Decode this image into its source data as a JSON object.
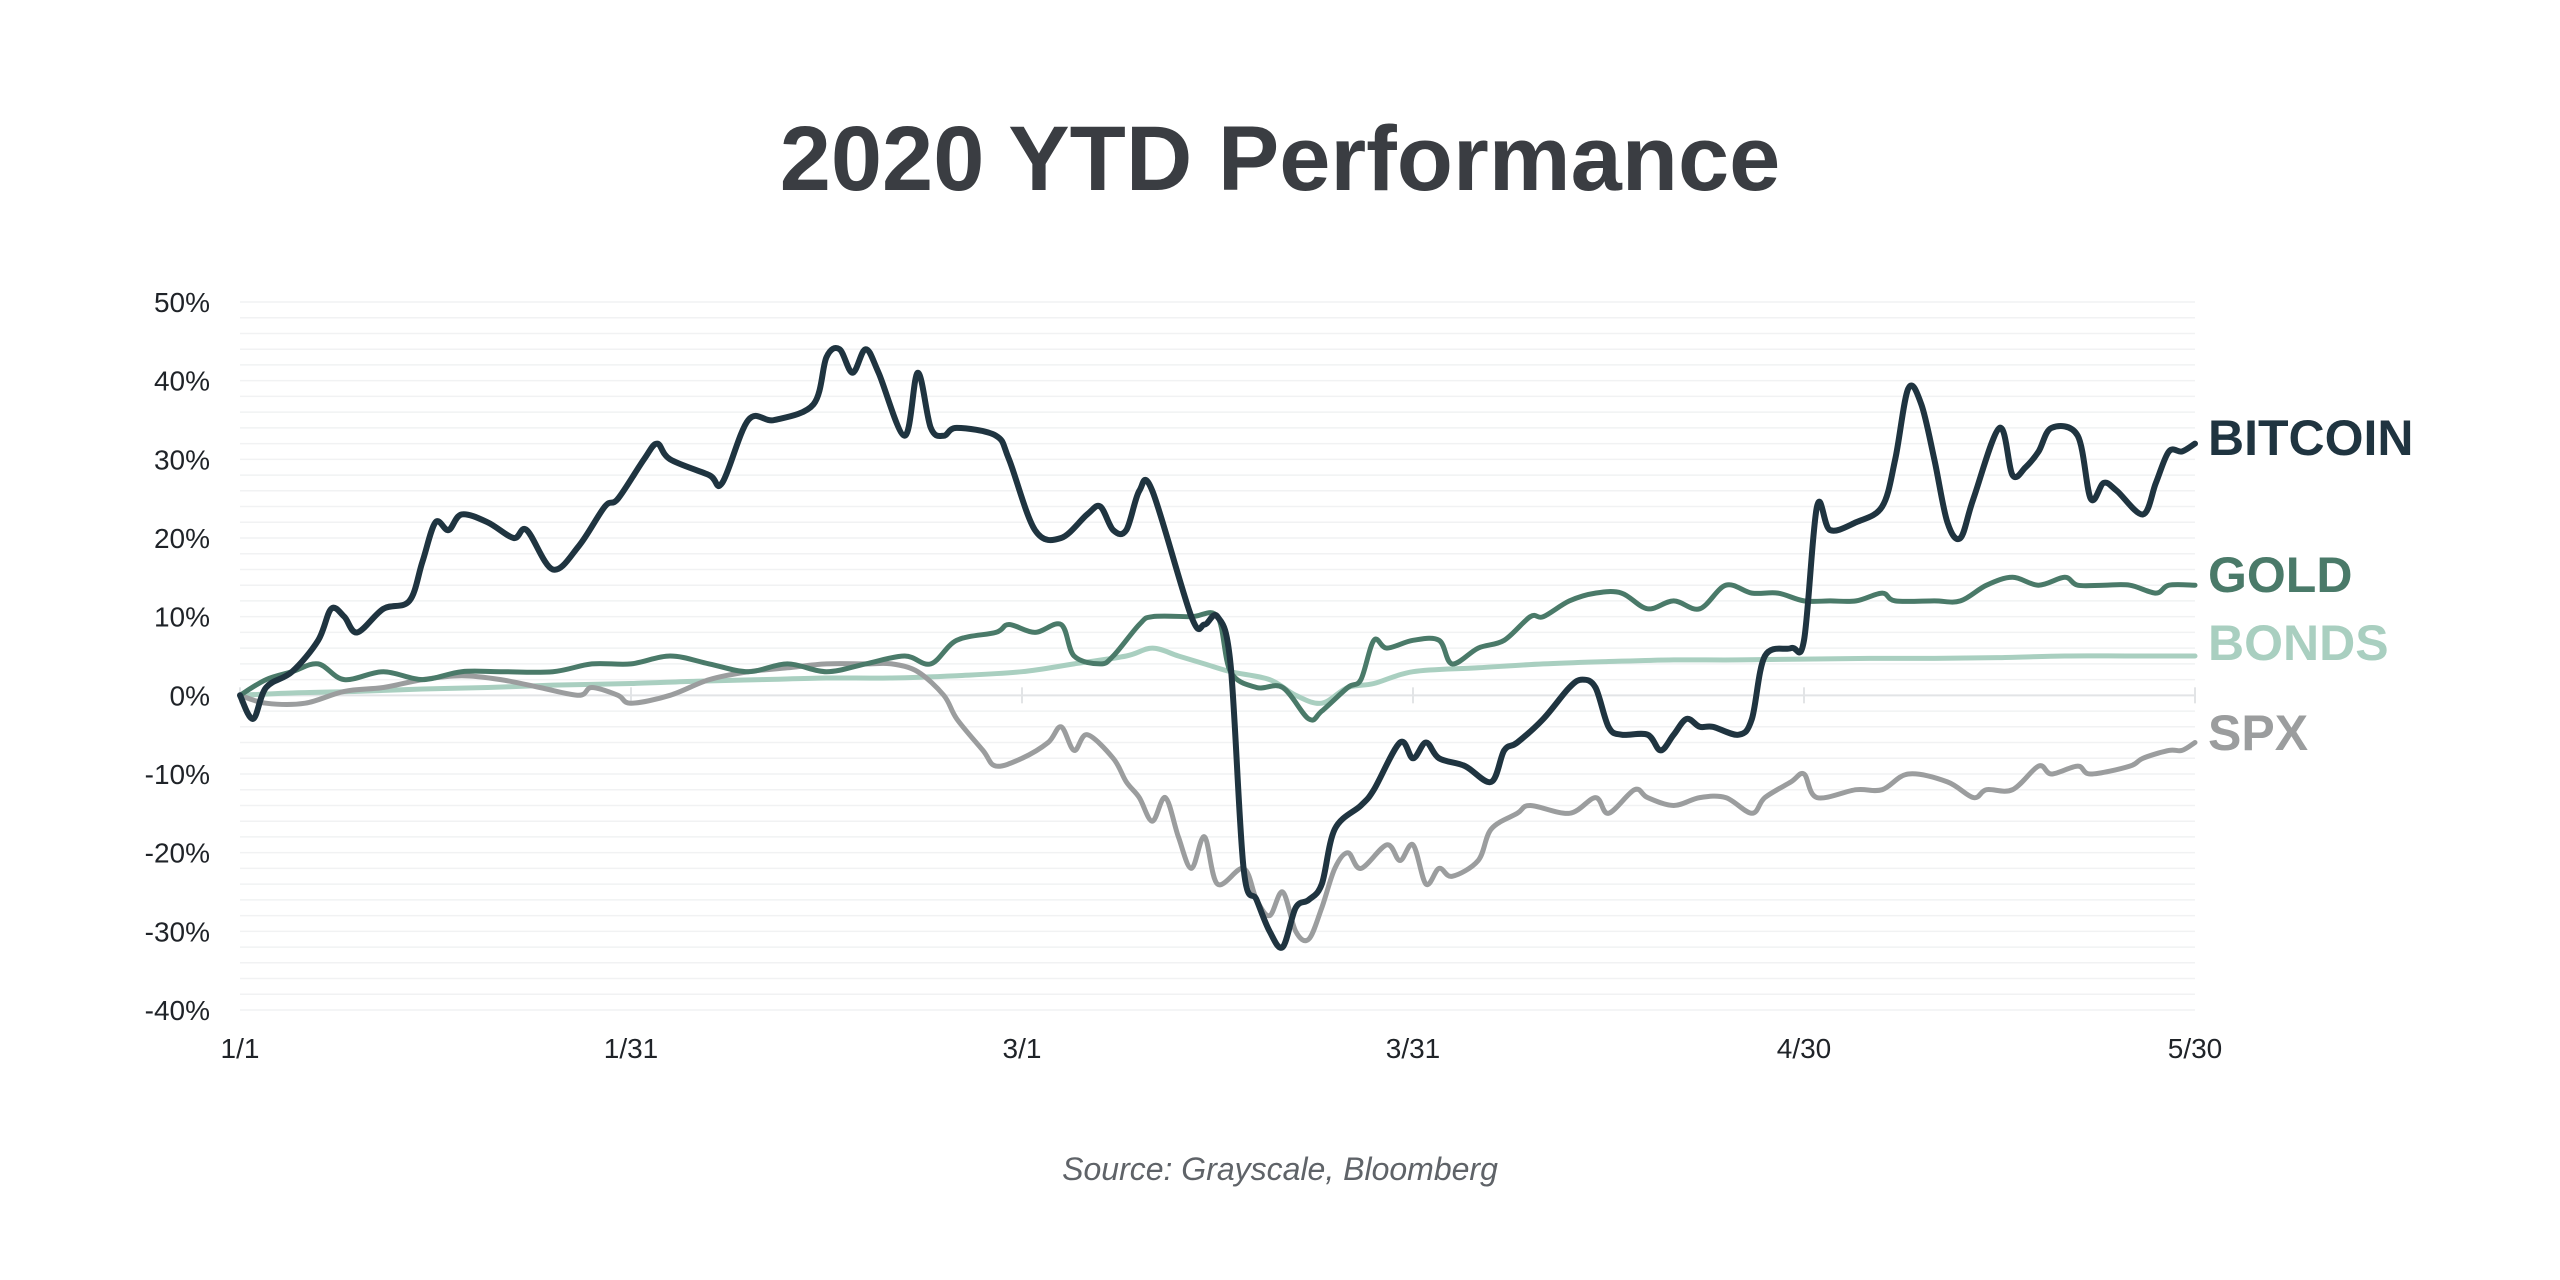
{
  "chart_data": {
    "type": "line",
    "title": "2020 YTD Performance",
    "source": "Source: Grayscale, Bloomberg",
    "xlabel": "",
    "ylabel": "",
    "x_range": [
      "1/1",
      "5/30"
    ],
    "x_ticks": [
      "1/1",
      "1/31",
      "3/1",
      "3/31",
      "4/30",
      "5/30"
    ],
    "y_ticks": [
      50,
      40,
      30,
      20,
      10,
      0,
      -10,
      -20,
      -30,
      -40
    ],
    "y_tick_labels": [
      "50%",
      "40%",
      "30%",
      "20%",
      "10%",
      "0%",
      "-10%",
      "-20%",
      "-30%",
      "-40%"
    ],
    "ylim": [
      -40,
      50
    ],
    "grid": true,
    "legend": "right, labels at line ends",
    "series": [
      {
        "name": "BITCOIN",
        "color": "#1f3440",
        "points": [
          [
            "1/1",
            0
          ],
          [
            "1/2",
            -3
          ],
          [
            "1/3",
            1
          ],
          [
            "1/5",
            3
          ],
          [
            "1/7",
            7
          ],
          [
            "1/8",
            11
          ],
          [
            "1/9",
            10
          ],
          [
            "1/10",
            8
          ],
          [
            "1/12",
            11
          ],
          [
            "1/14",
            12
          ],
          [
            "1/15",
            17
          ],
          [
            "1/16",
            22
          ],
          [
            "1/17",
            21
          ],
          [
            "1/18",
            23
          ],
          [
            "1/20",
            22
          ],
          [
            "1/22",
            20
          ],
          [
            "1/23",
            21
          ],
          [
            "1/25",
            16
          ],
          [
            "1/27",
            19
          ],
          [
            "1/29",
            24
          ],
          [
            "1/30",
            25
          ],
          [
            "2/1",
            30
          ],
          [
            "2/2",
            32
          ],
          [
            "2/3",
            30
          ],
          [
            "2/6",
            28
          ],
          [
            "2/7",
            27
          ],
          [
            "2/9",
            35
          ],
          [
            "2/11",
            35
          ],
          [
            "2/14",
            37
          ],
          [
            "2/15",
            43
          ],
          [
            "2/16",
            44
          ],
          [
            "2/17",
            41
          ],
          [
            "2/18",
            44
          ],
          [
            "2/19",
            41
          ],
          [
            "2/21",
            33
          ],
          [
            "2/22",
            41
          ],
          [
            "2/23",
            34
          ],
          [
            "2/24",
            33
          ],
          [
            "2/25",
            34
          ],
          [
            "2/28",
            33
          ],
          [
            "2/29",
            30
          ],
          [
            "3/2",
            21
          ],
          [
            "3/4",
            20
          ],
          [
            "3/6",
            23
          ],
          [
            "3/7",
            24
          ],
          [
            "3/8",
            21
          ],
          [
            "3/9",
            21
          ],
          [
            "3/10",
            26
          ],
          [
            "3/11",
            26
          ],
          [
            "3/14",
            10
          ],
          [
            "3/15",
            9
          ],
          [
            "3/16",
            10
          ],
          [
            "3/17",
            4
          ],
          [
            "3/18",
            -22
          ],
          [
            "3/19",
            -26
          ],
          [
            "3/20",
            -30
          ],
          [
            "3/21",
            -32
          ],
          [
            "3/22",
            -27
          ],
          [
            "3/23",
            -26
          ],
          [
            "3/24",
            -24
          ],
          [
            "3/25",
            -17
          ],
          [
            "3/27",
            -14
          ],
          [
            "3/28",
            -12
          ],
          [
            "3/30",
            -6
          ],
          [
            "3/31",
            -8
          ],
          [
            "4/1",
            -6
          ],
          [
            "4/2",
            -8
          ],
          [
            "4/4",
            -9
          ],
          [
            "4/6",
            -11
          ],
          [
            "4/7",
            -7
          ],
          [
            "4/8",
            -6
          ],
          [
            "4/10",
            -3
          ],
          [
            "4/12",
            1
          ],
          [
            "4/13",
            2
          ],
          [
            "4/14",
            1
          ],
          [
            "4/15",
            -4
          ],
          [
            "4/16",
            -5
          ],
          [
            "4/18",
            -5
          ],
          [
            "4/19",
            -7
          ],
          [
            "4/20",
            -5
          ],
          [
            "4/21",
            -3
          ],
          [
            "4/22",
            -4
          ],
          [
            "4/23",
            -4
          ],
          [
            "4/25",
            -5
          ],
          [
            "4/26",
            -3
          ],
          [
            "4/27",
            5
          ],
          [
            "4/29",
            6
          ],
          [
            "4/30",
            7
          ],
          [
            "5/1",
            24
          ],
          [
            "5/2",
            21
          ],
          [
            "5/4",
            22
          ],
          [
            "5/6",
            24
          ],
          [
            "5/7",
            30
          ],
          [
            "5/8",
            39
          ],
          [
            "5/9",
            37
          ],
          [
            "5/10",
            30
          ],
          [
            "5/11",
            22
          ],
          [
            "5/12",
            20
          ],
          [
            "5/13",
            25
          ],
          [
            "5/15",
            34
          ],
          [
            "5/16",
            28
          ],
          [
            "5/17",
            29
          ],
          [
            "5/18",
            31
          ],
          [
            "5/19",
            34
          ],
          [
            "5/21",
            33
          ],
          [
            "5/22",
            25
          ],
          [
            "5/23",
            27
          ],
          [
            "5/24",
            26
          ],
          [
            "5/26",
            23
          ],
          [
            "5/27",
            27
          ],
          [
            "5/28",
            31
          ],
          [
            "5/29",
            31
          ],
          [
            "5/30",
            32
          ]
        ]
      },
      {
        "name": "GOLD",
        "color": "#4a7a69",
        "points": [
          [
            "1/1",
            0
          ],
          [
            "1/3",
            2
          ],
          [
            "1/5",
            3
          ],
          [
            "1/7",
            4
          ],
          [
            "1/9",
            2
          ],
          [
            "1/12",
            3
          ],
          [
            "1/15",
            2
          ],
          [
            "1/18",
            3
          ],
          [
            "1/21",
            3
          ],
          [
            "1/25",
            3
          ],
          [
            "1/28",
            4
          ],
          [
            "1/31",
            4
          ],
          [
            "2/3",
            5
          ],
          [
            "2/6",
            4
          ],
          [
            "2/9",
            3
          ],
          [
            "2/12",
            4
          ],
          [
            "2/15",
            3
          ],
          [
            "2/18",
            4
          ],
          [
            "2/21",
            5
          ],
          [
            "2/23",
            4
          ],
          [
            "2/25",
            7
          ],
          [
            "2/28",
            8
          ],
          [
            "2/29",
            9
          ],
          [
            "3/2",
            8
          ],
          [
            "3/4",
            9
          ],
          [
            "3/5",
            5
          ],
          [
            "3/7",
            4
          ],
          [
            "3/8",
            5
          ],
          [
            "3/10",
            9
          ],
          [
            "3/11",
            10
          ],
          [
            "3/14",
            10
          ],
          [
            "3/16",
            10
          ],
          [
            "3/17",
            3
          ],
          [
            "3/19",
            1
          ],
          [
            "3/21",
            1
          ],
          [
            "3/23",
            -3
          ],
          [
            "3/24",
            -2
          ],
          [
            "3/26",
            1
          ],
          [
            "3/27",
            2
          ],
          [
            "3/28",
            7
          ],
          [
            "3/29",
            6
          ],
          [
            "3/31",
            7
          ],
          [
            "4/2",
            7
          ],
          [
            "4/3",
            4
          ],
          [
            "4/5",
            6
          ],
          [
            "4/7",
            7
          ],
          [
            "4/9",
            10
          ],
          [
            "4/10",
            10
          ],
          [
            "4/12",
            12
          ],
          [
            "4/14",
            13
          ],
          [
            "4/16",
            13
          ],
          [
            "4/18",
            11
          ],
          [
            "4/20",
            12
          ],
          [
            "4/22",
            11
          ],
          [
            "4/24",
            14
          ],
          [
            "4/26",
            13
          ],
          [
            "4/28",
            13
          ],
          [
            "4/30",
            12
          ],
          [
            "5/2",
            12
          ],
          [
            "5/4",
            12
          ],
          [
            "5/6",
            13
          ],
          [
            "5/7",
            12
          ],
          [
            "5/10",
            12
          ],
          [
            "5/12",
            12
          ],
          [
            "5/14",
            14
          ],
          [
            "5/16",
            15
          ],
          [
            "5/18",
            14
          ],
          [
            "5/20",
            15
          ],
          [
            "5/21",
            14
          ],
          [
            "5/23",
            14
          ],
          [
            "5/25",
            14
          ],
          [
            "5/27",
            13
          ],
          [
            "5/28",
            14
          ],
          [
            "5/30",
            14
          ]
        ]
      },
      {
        "name": "BONDS",
        "color": "#a9cfc0",
        "points": [
          [
            "1/1",
            0
          ],
          [
            "1/5",
            0.3
          ],
          [
            "1/10",
            0.5
          ],
          [
            "1/15",
            0.8
          ],
          [
            "1/20",
            1
          ],
          [
            "1/25",
            1.3
          ],
          [
            "1/31",
            1.5
          ],
          [
            "2/5",
            1.8
          ],
          [
            "2/10",
            2
          ],
          [
            "2/15",
            2.2
          ],
          [
            "2/20",
            2.2
          ],
          [
            "2/25",
            2.5
          ],
          [
            "3/1",
            3
          ],
          [
            "3/5",
            4
          ],
          [
            "3/9",
            5
          ],
          [
            "3/11",
            6
          ],
          [
            "3/13",
            5
          ],
          [
            "3/15",
            4
          ],
          [
            "3/17",
            3
          ],
          [
            "3/20",
            2
          ],
          [
            "3/22",
            0
          ],
          [
            "3/24",
            -1
          ],
          [
            "3/26",
            1
          ],
          [
            "3/28",
            1.5
          ],
          [
            "3/31",
            3
          ],
          [
            "4/5",
            3.5
          ],
          [
            "4/10",
            4
          ],
          [
            "4/15",
            4.3
          ],
          [
            "4/20",
            4.5
          ],
          [
            "4/25",
            4.5
          ],
          [
            "4/30",
            4.6
          ],
          [
            "5/5",
            4.7
          ],
          [
            "5/10",
            4.7
          ],
          [
            "5/15",
            4.8
          ],
          [
            "5/20",
            5
          ],
          [
            "5/25",
            5
          ],
          [
            "5/30",
            5
          ]
        ]
      },
      {
        "name": "SPX",
        "color": "#9b9d9e",
        "points": [
          [
            "1/1",
            0
          ],
          [
            "1/3",
            -1
          ],
          [
            "1/6",
            -1
          ],
          [
            "1/9",
            0.5
          ],
          [
            "1/12",
            1
          ],
          [
            "1/15",
            2
          ],
          [
            "1/18",
            2.5
          ],
          [
            "1/21",
            2
          ],
          [
            "1/24",
            1
          ],
          [
            "1/27",
            0
          ],
          [
            "1/28",
            1
          ],
          [
            "1/30",
            0
          ],
          [
            "1/31",
            -1
          ],
          [
            "2/3",
            0
          ],
          [
            "2/6",
            2
          ],
          [
            "2/9",
            3
          ],
          [
            "2/12",
            3.5
          ],
          [
            "2/15",
            4
          ],
          [
            "2/18",
            4
          ],
          [
            "2/20",
            4
          ],
          [
            "2/22",
            3
          ],
          [
            "2/24",
            0
          ],
          [
            "2/25",
            -3
          ],
          [
            "2/27",
            -7
          ],
          [
            "2/28",
            -9
          ],
          [
            "3/1",
            -8
          ],
          [
            "3/3",
            -6
          ],
          [
            "3/4",
            -4
          ],
          [
            "3/5",
            -7
          ],
          [
            "3/6",
            -5
          ],
          [
            "3/8",
            -8
          ],
          [
            "3/9",
            -11
          ],
          [
            "3/10",
            -13
          ],
          [
            "3/11",
            -16
          ],
          [
            "3/12",
            -13
          ],
          [
            "3/13",
            -18
          ],
          [
            "3/14",
            -22
          ],
          [
            "3/15",
            -18
          ],
          [
            "3/16",
            -24
          ],
          [
            "3/18",
            -22
          ],
          [
            "3/19",
            -26
          ],
          [
            "3/20",
            -28
          ],
          [
            "3/21",
            -25
          ],
          [
            "3/22",
            -30
          ],
          [
            "3/23",
            -31
          ],
          [
            "3/24",
            -27
          ],
          [
            "3/25",
            -22
          ],
          [
            "3/26",
            -20
          ],
          [
            "3/27",
            -22
          ],
          [
            "3/29",
            -19
          ],
          [
            "3/30",
            -21
          ],
          [
            "3/31",
            -19
          ],
          [
            "4/1",
            -24
          ],
          [
            "4/2",
            -22
          ],
          [
            "4/3",
            -23
          ],
          [
            "4/5",
            -21
          ],
          [
            "4/6",
            -17
          ],
          [
            "4/8",
            -15
          ],
          [
            "4/9",
            -14
          ],
          [
            "4/12",
            -15
          ],
          [
            "4/14",
            -13
          ],
          [
            "4/15",
            -15
          ],
          [
            "4/17",
            -12
          ],
          [
            "4/18",
            -13
          ],
          [
            "4/20",
            -14
          ],
          [
            "4/22",
            -13
          ],
          [
            "4/24",
            -13
          ],
          [
            "4/26",
            -15
          ],
          [
            "4/27",
            -13
          ],
          [
            "4/29",
            -11
          ],
          [
            "4/30",
            -10
          ],
          [
            "5/1",
            -13
          ],
          [
            "5/4",
            -12
          ],
          [
            "5/6",
            -12
          ],
          [
            "5/8",
            -10
          ],
          [
            "5/11",
            -11
          ],
          [
            "5/13",
            -13
          ],
          [
            "5/14",
            -12
          ],
          [
            "5/16",
            -12
          ],
          [
            "5/18",
            -9
          ],
          [
            "5/19",
            -10
          ],
          [
            "5/21",
            -9
          ],
          [
            "5/22",
            -10
          ],
          [
            "5/25",
            -9
          ],
          [
            "5/26",
            -8
          ],
          [
            "5/28",
            -7
          ],
          [
            "5/29",
            -7
          ],
          [
            "5/30",
            -6
          ]
        ]
      }
    ]
  }
}
